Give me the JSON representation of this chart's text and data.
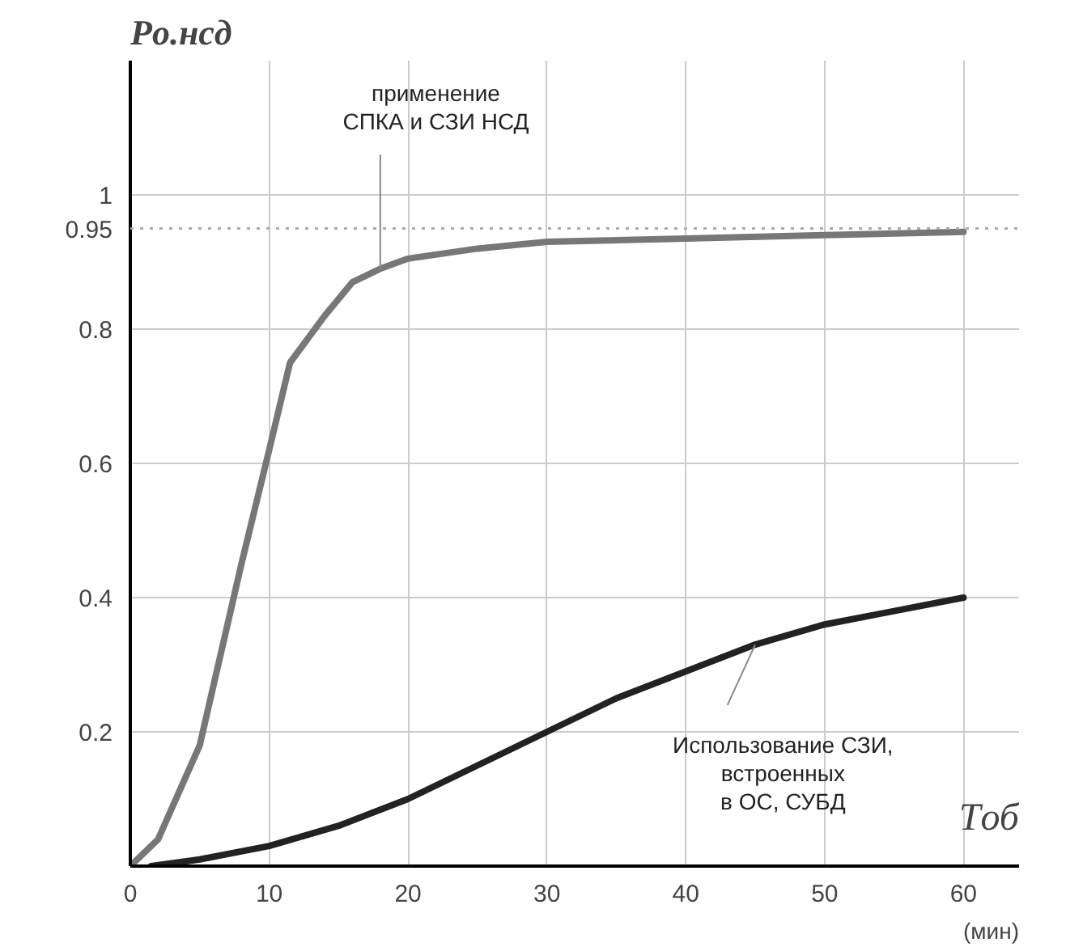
{
  "chart_data": {
    "type": "line",
    "xlabel": "Tоб",
    "ylabel": "Pо.нсд",
    "annotations": [
      "(мин)"
    ],
    "xlim": [
      0,
      64
    ],
    "ylim": [
      0,
      1.2
    ],
    "xticks": [
      0,
      10,
      20,
      30,
      40,
      50,
      60
    ],
    "yticks": [
      0.2,
      0.4,
      0.6,
      0.8,
      1
    ],
    "grid": true,
    "marker": "none",
    "line_style": "solid",
    "ref_lines": [
      {
        "axis": "y",
        "value": 0.95,
        "label": "0.95",
        "color": "#aaaaaa",
        "line_style": "dotted"
      }
    ],
    "series": [
      {
        "name": "применение\nСПКА и СЗИ НСД",
        "color": "#777777",
        "x": [
          0,
          2,
          5,
          8,
          10,
          11.5,
          14,
          16,
          18,
          20,
          25,
          30,
          40,
          50,
          60
        ],
        "values": [
          0,
          0.04,
          0.18,
          0.45,
          0.62,
          0.75,
          0.82,
          0.87,
          0.89,
          0.905,
          0.92,
          0.93,
          0.935,
          0.94,
          0.945
        ]
      },
      {
        "name": "Использование СЗИ,\nвстроенных\nв ОС, СУБД",
        "color": "#222222",
        "x": [
          1.5,
          5,
          10,
          15,
          20,
          25,
          30,
          35,
          40,
          45,
          50,
          55,
          60
        ],
        "values": [
          0,
          0.01,
          0.03,
          0.06,
          0.1,
          0.15,
          0.2,
          0.25,
          0.29,
          0.33,
          0.36,
          0.38,
          0.4
        ]
      }
    ]
  }
}
